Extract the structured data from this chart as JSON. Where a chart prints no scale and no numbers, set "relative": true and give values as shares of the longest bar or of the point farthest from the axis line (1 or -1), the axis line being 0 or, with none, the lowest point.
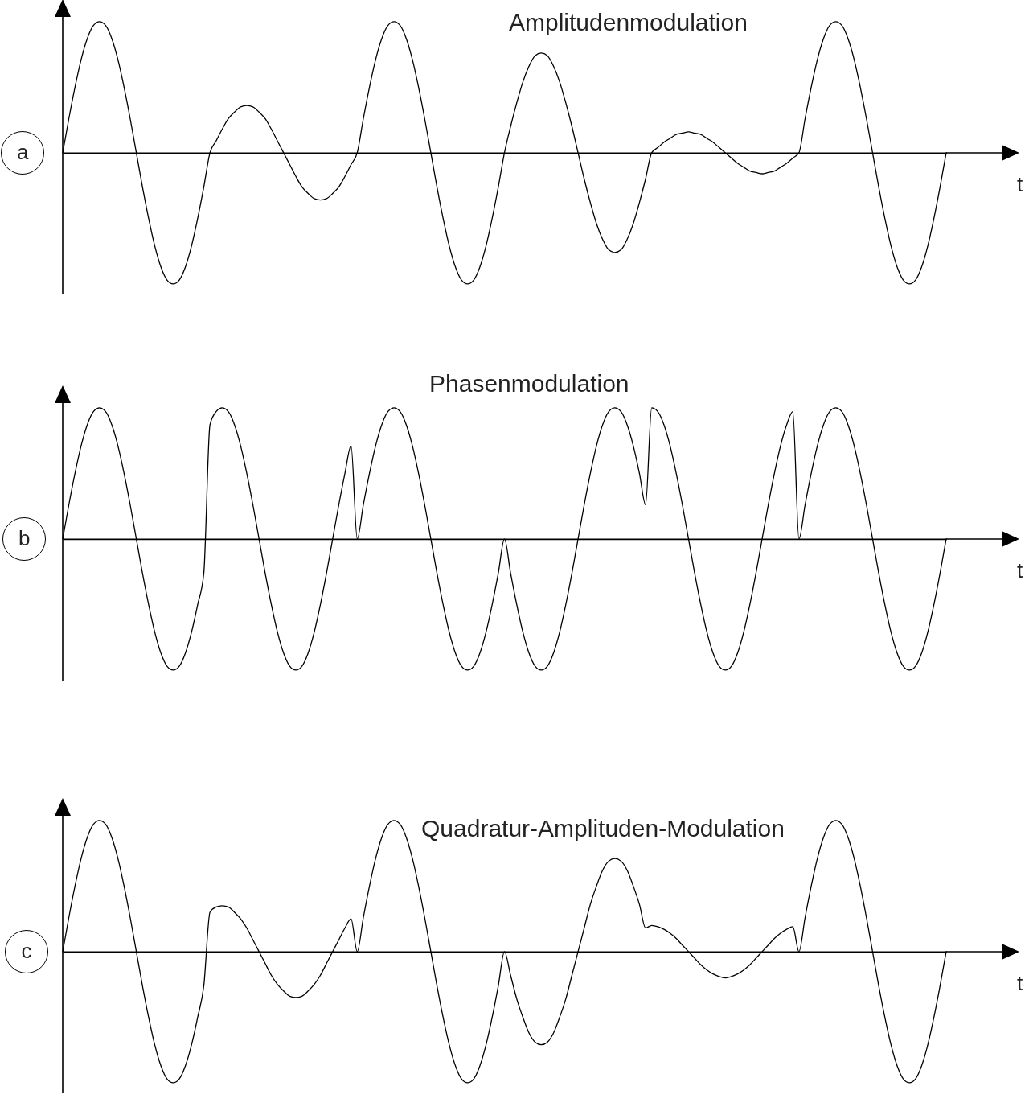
{
  "chart_data": [
    {
      "type": "line",
      "title": "Amplitudenmodulation",
      "ylabel": "a",
      "xlabel": "t",
      "relative": true,
      "categories": [
        null,
        null,
        null,
        null,
        null,
        null,
        null,
        null,
        null,
        null,
        null,
        null,
        null,
        null,
        null,
        null,
        null,
        null,
        null,
        null,
        null,
        null,
        null,
        null,
        null,
        null,
        null,
        null,
        null,
        null,
        null,
        null,
        null,
        null,
        null,
        null,
        null,
        null,
        null,
        null,
        null,
        null,
        null,
        null,
        null,
        null,
        null,
        null,
        null,
        null,
        null,
        null,
        null,
        null,
        null,
        null,
        null,
        null,
        null,
        null,
        null,
        null,
        null,
        null,
        null,
        null,
        null,
        null,
        null,
        null,
        null,
        null,
        null,
        null,
        null,
        null,
        null,
        null,
        null,
        null,
        null,
        null,
        null,
        null,
        null,
        null,
        null,
        null,
        null,
        null,
        null,
        null,
        null,
        null,
        null,
        null,
        null,
        null,
        null,
        null,
        null,
        null,
        null,
        null,
        null,
        null,
        null,
        null,
        null,
        null,
        null,
        null,
        null,
        null,
        null,
        null,
        null,
        null,
        null,
        null,
        null,
        null,
        null,
        null,
        null,
        null,
        null,
        null,
        null,
        null,
        null,
        null,
        null,
        null,
        null,
        null,
        null,
        null,
        null,
        null,
        null,
        null,
        null,
        null,
        null
      ],
      "series": [
        {
          "color": "#000000",
          "values": [
            0,
            0.26,
            0.5,
            0.71,
            0.87,
            0.97,
            1,
            0.97,
            0.87,
            0.71,
            0.5,
            0.26,
            0,
            -0.26,
            -0.5,
            -0.71,
            -0.87,
            -0.97,
            -1,
            -0.97,
            -0.87,
            -0.71,
            -0.5,
            -0.26,
            0,
            0.09,
            0.18,
            0.26,
            0.31,
            0.35,
            0.36,
            0.35,
            0.31,
            0.26,
            0.18,
            0.09,
            0,
            -0.09,
            -0.18,
            -0.26,
            -0.31,
            -0.35,
            -0.36,
            -0.35,
            -0.31,
            -0.26,
            -0.18,
            -0.09,
            0,
            0.26,
            0.5,
            0.71,
            0.87,
            0.97,
            1,
            0.97,
            0.87,
            0.71,
            0.5,
            0.26,
            0,
            -0.26,
            -0.5,
            -0.71,
            -0.87,
            -0.97,
            -1,
            -0.97,
            -0.87,
            -0.71,
            -0.5,
            -0.26,
            0,
            0.2,
            0.38,
            0.54,
            0.66,
            0.74,
            0.76,
            0.74,
            0.66,
            0.54,
            0.38,
            0.2,
            0,
            -0.2,
            -0.38,
            -0.54,
            -0.66,
            -0.74,
            -0.76,
            -0.74,
            -0.66,
            -0.54,
            -0.38,
            -0.2,
            0,
            0.04,
            0.08,
            0.11,
            0.14,
            0.15,
            0.16,
            0.15,
            0.14,
            0.11,
            0.08,
            0.04,
            0,
            -0.04,
            -0.08,
            -0.11,
            -0.14,
            -0.15,
            -0.16,
            -0.15,
            -0.14,
            -0.11,
            -0.08,
            -0.04,
            0,
            0.26,
            0.5,
            0.71,
            0.87,
            0.97,
            1,
            0.97,
            0.87,
            0.71,
            0.5,
            0.26,
            0,
            -0.26,
            -0.5,
            -0.71,
            -0.87,
            -0.97,
            -1,
            -0.97,
            -0.87,
            -0.71,
            -0.5,
            -0.26,
            0
          ]
        }
      ]
    },
    {
      "type": "line",
      "title": "Phasenmodulation",
      "ylabel": "b",
      "xlabel": "t",
      "relative": true,
      "categories": [
        null,
        null,
        null,
        null,
        null,
        null,
        null,
        null,
        null,
        null,
        null,
        null,
        null,
        null,
        null,
        null,
        null,
        null,
        null,
        null,
        null,
        null,
        null,
        null,
        null,
        null,
        null,
        null,
        null,
        null,
        null,
        null,
        null,
        null,
        null,
        null,
        null,
        null,
        null,
        null,
        null,
        null,
        null,
        null,
        null,
        null,
        null,
        null,
        null,
        null,
        null,
        null,
        null,
        null,
        null,
        null,
        null,
        null,
        null,
        null,
        null,
        null,
        null,
        null,
        null,
        null,
        null,
        null,
        null,
        null,
        null,
        null,
        null,
        null,
        null,
        null,
        null,
        null,
        null,
        null,
        null,
        null,
        null,
        null,
        null,
        null,
        null,
        null,
        null,
        null,
        null,
        null,
        null,
        null,
        null,
        null,
        null,
        null,
        null,
        null,
        null,
        null,
        null,
        null,
        null,
        null,
        null,
        null,
        null,
        null,
        null,
        null,
        null,
        null,
        null,
        null,
        null,
        null,
        null,
        null,
        null,
        null,
        null,
        null,
        null,
        null,
        null,
        null,
        null,
        null,
        null,
        null,
        null,
        null,
        null,
        null,
        null,
        null,
        null,
        null,
        null,
        null,
        null,
        null,
        null
      ],
      "series": [
        {
          "color": "#000000",
          "values": [
            0,
            0.26,
            0.5,
            0.71,
            0.87,
            0.97,
            1,
            0.97,
            0.87,
            0.71,
            0.5,
            0.26,
            0,
            -0.26,
            -0.5,
            -0.71,
            -0.87,
            -0.97,
            -1,
            -0.97,
            -0.87,
            -0.71,
            -0.5,
            -0.26,
            0.87,
            0.97,
            1,
            0.97,
            0.87,
            0.71,
            0.5,
            0.26,
            0,
            -0.26,
            -0.5,
            -0.71,
            -0.87,
            -0.97,
            -1,
            -0.97,
            -0.87,
            -0.71,
            -0.5,
            -0.26,
            0,
            0.26,
            0.5,
            0.71,
            0,
            0.26,
            0.5,
            0.71,
            0.87,
            0.97,
            1,
            0.97,
            0.87,
            0.71,
            0.5,
            0.26,
            0,
            -0.26,
            -0.5,
            -0.71,
            -0.87,
            -0.97,
            -1,
            -0.97,
            -0.87,
            -0.71,
            -0.5,
            -0.26,
            0,
            -0.26,
            -0.5,
            -0.71,
            -0.87,
            -0.97,
            -1,
            -0.97,
            -0.87,
            -0.71,
            -0.5,
            -0.26,
            0,
            0.26,
            0.5,
            0.71,
            0.87,
            0.97,
            1,
            0.97,
            0.87,
            0.71,
            0.5,
            0.26,
            1,
            0.97,
            0.87,
            0.71,
            0.5,
            0.26,
            0,
            -0.26,
            -0.5,
            -0.71,
            -0.87,
            -0.97,
            -1,
            -0.97,
            -0.87,
            -0.71,
            -0.5,
            -0.26,
            0,
            0.26,
            0.5,
            0.71,
            0.87,
            0.97,
            0,
            0.26,
            0.5,
            0.71,
            0.87,
            0.97,
            1,
            0.97,
            0.87,
            0.71,
            0.5,
            0.26,
            0,
            -0.26,
            -0.5,
            -0.71,
            -0.87,
            -0.97,
            -1,
            -0.97,
            -0.87,
            -0.71,
            -0.5,
            -0.26,
            0
          ]
        }
      ]
    },
    {
      "type": "line",
      "title": "Quadratur-Amplituden-Modulation",
      "ylabel": "c",
      "xlabel": "t",
      "relative": true,
      "categories": [
        null,
        null,
        null,
        null,
        null,
        null,
        null,
        null,
        null,
        null,
        null,
        null,
        null,
        null,
        null,
        null,
        null,
        null,
        null,
        null,
        null,
        null,
        null,
        null,
        null,
        null,
        null,
        null,
        null,
        null,
        null,
        null,
        null,
        null,
        null,
        null,
        null,
        null,
        null,
        null,
        null,
        null,
        null,
        null,
        null,
        null,
        null,
        null,
        null,
        null,
        null,
        null,
        null,
        null,
        null,
        null,
        null,
        null,
        null,
        null,
        null,
        null,
        null,
        null,
        null,
        null,
        null,
        null,
        null,
        null,
        null,
        null,
        null,
        null,
        null,
        null,
        null,
        null,
        null,
        null,
        null,
        null,
        null,
        null,
        null,
        null,
        null,
        null,
        null,
        null,
        null,
        null,
        null,
        null,
        null,
        null,
        null,
        null,
        null,
        null,
        null,
        null,
        null,
        null,
        null,
        null,
        null,
        null,
        null,
        null,
        null,
        null,
        null,
        null,
        null,
        null,
        null,
        null,
        null,
        null,
        null,
        null,
        null,
        null,
        null,
        null,
        null,
        null,
        null,
        null,
        null,
        null,
        null,
        null,
        null,
        null,
        null,
        null,
        null,
        null,
        null,
        null,
        null,
        null,
        null
      ],
      "series": [
        {
          "color": "#000000",
          "values": [
            0,
            0.26,
            0.5,
            0.71,
            0.87,
            0.97,
            1,
            0.97,
            0.87,
            0.71,
            0.5,
            0.26,
            0,
            -0.26,
            -0.5,
            -0.71,
            -0.87,
            -0.97,
            -1,
            -0.97,
            -0.87,
            -0.71,
            -0.5,
            -0.26,
            0.3,
            0.34,
            0.35,
            0.34,
            0.3,
            0.25,
            0.18,
            0.09,
            0,
            -0.09,
            -0.18,
            -0.25,
            -0.3,
            -0.34,
            -0.35,
            -0.34,
            -0.3,
            -0.25,
            -0.18,
            -0.09,
            0,
            0.09,
            0.18,
            0.25,
            0,
            0.26,
            0.5,
            0.71,
            0.87,
            0.97,
            1,
            0.97,
            0.87,
            0.71,
            0.5,
            0.26,
            0,
            -0.26,
            -0.5,
            -0.71,
            -0.87,
            -0.97,
            -1,
            -0.97,
            -0.87,
            -0.71,
            -0.5,
            -0.26,
            0,
            -0.18,
            -0.36,
            -0.5,
            -0.62,
            -0.69,
            -0.71,
            -0.69,
            -0.62,
            -0.5,
            -0.36,
            -0.18,
            0,
            0.18,
            0.36,
            0.5,
            0.62,
            0.69,
            0.71,
            0.69,
            0.62,
            0.5,
            0.36,
            0.18,
            0.2,
            0.19,
            0.17,
            0.14,
            0.1,
            0.05,
            0,
            -0.05,
            -0.1,
            -0.14,
            -0.17,
            -0.19,
            -0.2,
            -0.19,
            -0.17,
            -0.14,
            -0.1,
            -0.05,
            0,
            0.05,
            0.1,
            0.14,
            0.17,
            0.19,
            0,
            0.26,
            0.5,
            0.71,
            0.87,
            0.97,
            1,
            0.97,
            0.87,
            0.71,
            0.5,
            0.26,
            0,
            -0.26,
            -0.5,
            -0.71,
            -0.87,
            -0.97,
            -1,
            -0.97,
            -0.87,
            -0.71,
            -0.5,
            -0.26,
            0
          ]
        }
      ]
    }
  ]
}
